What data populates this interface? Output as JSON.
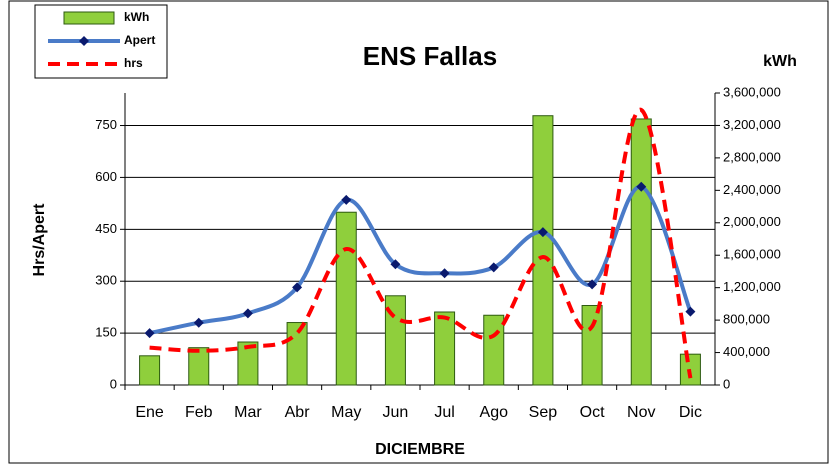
{
  "chart_data": {
    "type": "bar-line",
    "title": "ENS Fallas",
    "x_label": "DICIEMBRE",
    "y_label": "Hrs/Apert",
    "y2_label": "kWh",
    "categories": [
      "Ene",
      "Feb",
      "Mar",
      "Abr",
      "May",
      "Jun",
      "Jul",
      "Ago",
      "Sep",
      "Oct",
      "Nov",
      "Dic"
    ],
    "series": [
      {
        "name": "kWh",
        "type": "bar",
        "axis": "y2",
        "color": "#8fcf3c",
        "values": [
          360000,
          460000,
          530000,
          770000,
          2130000,
          1100000,
          900000,
          860000,
          3320000,
          980000,
          3280000,
          380000
        ]
      },
      {
        "name": "Apert",
        "type": "line",
        "color": "#4a7bc8",
        "marker_color": "#0a1a6e",
        "values": [
          150,
          180,
          207,
          282,
          535,
          349,
          323,
          340,
          442,
          291,
          573,
          212
        ]
      },
      {
        "name": "hrs",
        "type": "line",
        "dashed": true,
        "color": "#ff0000",
        "values": [
          108,
          99,
          110,
          150,
          393,
          195,
          195,
          143,
          370,
          169,
          795,
          20
        ]
      }
    ],
    "ylim": [
      0,
      844
    ],
    "yticks": [
      0,
      150,
      300,
      450,
      600,
      750
    ],
    "y2lim": [
      0,
      3600000
    ],
    "y2ticks": [
      0,
      {
        "value": 400000,
        "label": "400,000"
      },
      {
        "value": 800000,
        "label": "800,000"
      },
      {
        "value": 1200000,
        "label": "1,200,000"
      },
      {
        "value": 1600000,
        "label": "1,600,000"
      },
      {
        "value": 2000000,
        "label": "2,000,000"
      },
      {
        "value": 2400000,
        "label": "2,400,000"
      },
      {
        "value": 2800000,
        "label": "2,800,000"
      },
      {
        "value": 3200000,
        "label": "3,200,000"
      },
      {
        "value": 3600000,
        "label": "3,600,000"
      }
    ],
    "grid": true,
    "legend": "top-left"
  }
}
